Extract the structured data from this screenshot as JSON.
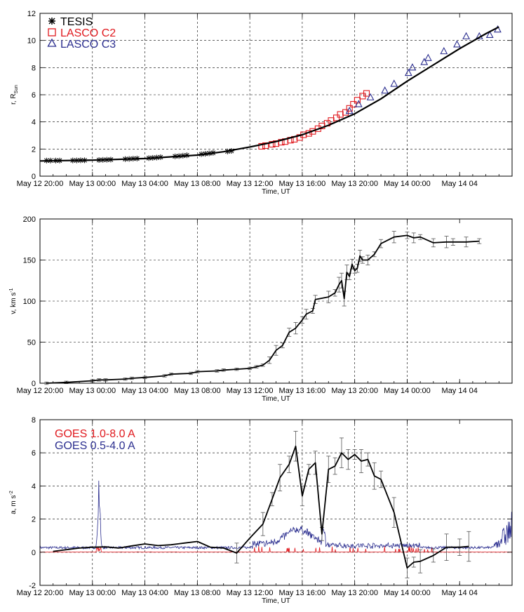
{
  "chart_data": [
    {
      "type": "scatter",
      "panel": "distance",
      "ylabel_main": "r, R",
      "ylabel_sub": "Sun",
      "xlabel": "Time, UT",
      "ylim": [
        0,
        12
      ],
      "yticks": [
        0,
        2,
        4,
        6,
        8,
        10,
        12
      ],
      "xlim_hours": [
        -4,
        32
      ],
      "xtick_labels": [
        "May 12 20:00",
        "May 13 00:00",
        "May 13 04:00",
        "May 13 08:00",
        "May 13 12:00",
        "May 13 16:00",
        "May 13 20:00",
        "May 14 00:00",
        "May 14 04"
      ],
      "grid": true,
      "legend_position": "top-left",
      "series": [
        {
          "name": "TESIS",
          "marker": "asterisk",
          "color": "#000000",
          "x": [
            -3.5,
            -3.2,
            -2.8,
            -2.5,
            -1.5,
            -1.2,
            -0.9,
            -0.6,
            0.5,
            0.8,
            1.1,
            1.4,
            2.5,
            2.8,
            3.1,
            3.4,
            4.3,
            4.6,
            4.9,
            5.2,
            6.3,
            6.6,
            6.9,
            7.2,
            8.3,
            8.6,
            8.9,
            9.2,
            10.3,
            10.6
          ],
          "y": [
            1.15,
            1.15,
            1.15,
            1.15,
            1.16,
            1.16,
            1.17,
            1.17,
            1.19,
            1.2,
            1.21,
            1.22,
            1.26,
            1.27,
            1.29,
            1.3,
            1.33,
            1.35,
            1.37,
            1.4,
            1.46,
            1.48,
            1.51,
            1.54,
            1.62,
            1.65,
            1.68,
            1.72,
            1.82,
            1.86
          ]
        },
        {
          "name": "LASCO C2",
          "marker": "square",
          "color": "#e0191e",
          "x": [
            12.9,
            13.2,
            13.7,
            14.0,
            14.4,
            14.7,
            15.1,
            15.4,
            15.8,
            16.1,
            16.5,
            16.8,
            17.2,
            17.5,
            17.9,
            18.2,
            18.6,
            18.9,
            19.3,
            19.6,
            19.9,
            20.2,
            20.6,
            20.9
          ],
          "y": [
            2.2,
            2.25,
            2.35,
            2.4,
            2.5,
            2.55,
            2.65,
            2.72,
            2.85,
            3.05,
            3.15,
            3.3,
            3.5,
            3.7,
            3.9,
            4.1,
            4.3,
            4.55,
            4.7,
            5.0,
            5.3,
            5.6,
            5.9,
            6.1
          ]
        },
        {
          "name": "LASCO C3",
          "marker": "triangle",
          "color": "#2b2e8f",
          "x": [
            19.6,
            20.3,
            21.2,
            22.3,
            23.0,
            24.1,
            24.4,
            25.3,
            25.6,
            26.8,
            27.8,
            28.5,
            29.5,
            30.3,
            30.9
          ],
          "y": [
            4.8,
            5.3,
            5.8,
            6.3,
            6.8,
            7.6,
            8.0,
            8.4,
            8.7,
            9.2,
            9.7,
            10.3,
            10.3,
            10.4,
            10.8
          ]
        },
        {
          "name": "",
          "marker": "line",
          "color": "#000000",
          "x": [
            -4,
            0,
            4,
            8,
            10,
            12,
            14,
            16,
            18,
            20,
            22,
            24,
            26,
            28,
            30,
            31
          ],
          "y": [
            1.12,
            1.18,
            1.3,
            1.55,
            1.8,
            2.15,
            2.55,
            3.05,
            3.75,
            4.6,
            5.7,
            7.0,
            8.2,
            9.4,
            10.5,
            11.0
          ]
        }
      ]
    },
    {
      "type": "line",
      "panel": "velocity",
      "ylabel_main": "v, km s",
      "ylabel_sup": "-1",
      "xlabel": "Time, UT",
      "ylim": [
        0,
        200
      ],
      "yticks": [
        0,
        50,
        100,
        150,
        200
      ],
      "xlim_hours": [
        -4,
        32
      ],
      "xtick_labels": [
        "May 12 20:00",
        "May 13 00:00",
        "May 13 04:00",
        "May 13 08:00",
        "May 13 12:00",
        "May 13 16:00",
        "May 13 20:00",
        "May 14 00:00",
        "May 14 04"
      ],
      "grid": true,
      "series": [
        {
          "name": "",
          "color": "#000000",
          "x": [
            -3.5,
            -2.0,
            0.0,
            0.5,
            1.0,
            2.5,
            3.0,
            4.0,
            5.5,
            6.0,
            7.5,
            8.0,
            9.5,
            10.0,
            11.0,
            12.0,
            12.5,
            13.0,
            13.5,
            14.0,
            14.5,
            15.0,
            15.5,
            16.0,
            16.3,
            16.8,
            17.0,
            18.0,
            18.5,
            18.8,
            19.0,
            19.2,
            19.4,
            19.6,
            19.8,
            20.0,
            20.2,
            20.4,
            20.6,
            21.0,
            21.5,
            22.0,
            23.0,
            24.0,
            24.5,
            25.0,
            26.0,
            27.0,
            27.5,
            28.5,
            29.5
          ],
          "y": [
            0,
            1,
            3,
            4,
            4,
            5,
            6,
            7,
            9,
            11,
            12,
            14,
            15,
            16,
            17,
            18,
            20,
            22,
            28,
            40,
            46,
            62,
            67,
            77,
            84,
            88,
            102,
            105,
            110,
            120,
            125,
            103,
            135,
            130,
            145,
            137,
            140,
            155,
            150,
            150,
            157,
            170,
            178,
            180,
            177,
            178,
            171,
            172,
            172,
            172,
            173
          ]
        }
      ]
    },
    {
      "type": "line",
      "panel": "acceleration",
      "ylabel_main": "a, m s",
      "ylabel_sup": "-2",
      "xlabel": "Time, UT",
      "ylim": [
        -2,
        8
      ],
      "yticks": [
        -2,
        0,
        2,
        4,
        6,
        8
      ],
      "xlim_hours": [
        -4,
        32
      ],
      "xtick_labels": [
        "May 12 20:00",
        "May 13 00:00",
        "May 13 04:00",
        "May 13 08:00",
        "May 13 12:00",
        "May 13 16:00",
        "May 13 20:00",
        "May 14 00:00",
        "May 14 04"
      ],
      "grid": true,
      "legend_position": "top-left",
      "series": [
        {
          "name": "GOES 1.0-8.0 A",
          "color": "#e0191e"
        },
        {
          "name": "GOES 0.5-4.0 A",
          "color": "#2b2e8f"
        },
        {
          "name": "",
          "color": "#000000",
          "x": [
            -3.0,
            -1.0,
            0.0,
            1.0,
            2.0,
            3.0,
            4.0,
            5.0,
            6.0,
            7.0,
            8.0,
            9.0,
            10.0,
            11.0,
            12.0,
            13.0,
            13.7,
            14.3,
            15.0,
            15.5,
            16.0,
            16.5,
            17.0,
            17.5,
            18.0,
            18.5,
            19.0,
            19.5,
            20.0,
            20.5,
            21.0,
            21.5,
            22.0,
            23.0,
            24.0,
            24.5,
            25.0,
            26.0,
            27.0,
            28.0,
            28.7
          ],
          "y": [
            0.05,
            0.25,
            0.3,
            0.32,
            0.25,
            0.38,
            0.5,
            0.4,
            0.45,
            0.55,
            0.65,
            0.3,
            0.25,
            -0.05,
            0.85,
            1.7,
            3.2,
            4.5,
            5.3,
            6.4,
            3.4,
            5.0,
            5.4,
            1.1,
            5.0,
            5.2,
            6.0,
            5.6,
            5.9,
            5.5,
            5.6,
            4.6,
            4.4,
            2.4,
            -0.95,
            -0.6,
            -0.55,
            -0.2,
            0.3,
            0.3,
            0.35
          ]
        }
      ]
    }
  ]
}
